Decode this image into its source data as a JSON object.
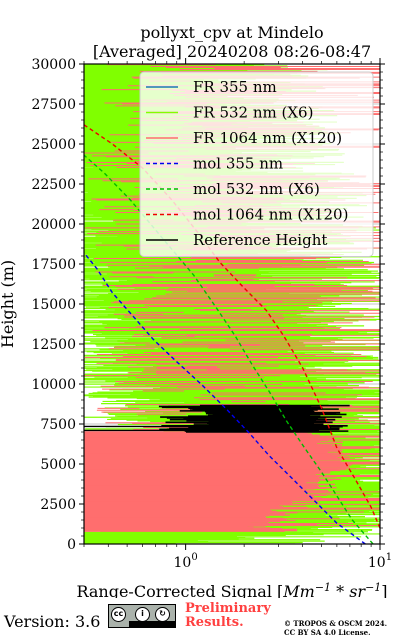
{
  "chart_data": {
    "type": "line",
    "title": "pollyxt_cpv at Mindelo",
    "subtitle": "[Averaged] 20240208 08:26-08:47",
    "xlabel_prefix": "Range-Corrected Signal [",
    "xlabel_math": "Mm",
    "xlabel_sup1": "−1",
    "xlabel_mid": " * sr",
    "xlabel_sup2": "−1",
    "xlabel_suffix": "]",
    "ylabel": "Height (m)",
    "xscale": "log",
    "xlim": [
      0.3,
      10
    ],
    "ylim": [
      0,
      30000
    ],
    "xticks": [
      {
        "value": 1,
        "label": "10",
        "sup": "0"
      },
      {
        "value": 10,
        "label": "10",
        "sup": "1"
      }
    ],
    "yticks": [
      0,
      2500,
      5000,
      7500,
      10000,
      12500,
      15000,
      17500,
      20000,
      22500,
      25000,
      27500,
      30000
    ],
    "grid": true,
    "legend_position": "top-right",
    "series": [
      {
        "name": "FR 355 nm",
        "color": "#1f77b4",
        "style": "solid",
        "points": []
      },
      {
        "name": "FR 532 nm (X6)",
        "color": "#80ff00",
        "style": "solid",
        "note_noisy": true,
        "points": [
          [
            0.6,
            0
          ],
          [
            3,
            1000
          ],
          [
            5,
            2500
          ],
          [
            6,
            4000
          ],
          [
            5,
            6000
          ],
          [
            4,
            8000
          ],
          [
            3,
            10000
          ],
          [
            2.5,
            12500
          ],
          [
            2,
            15000
          ],
          [
            1.8,
            17500
          ],
          [
            1.5,
            20000
          ],
          [
            1.2,
            22500
          ],
          [
            1,
            25000
          ],
          [
            0.9,
            27500
          ],
          [
            0.8,
            30000
          ]
        ]
      },
      {
        "name": "FR 1064 nm (X120)",
        "color": "#ff6e6e",
        "style": "solid",
        "note_noisy": true,
        "points": [
          [
            2,
            1000
          ],
          [
            4,
            3000
          ],
          [
            5,
            5000
          ],
          [
            4.5,
            7000
          ],
          [
            4,
            9000
          ],
          [
            3,
            11000
          ],
          [
            2.5,
            13000
          ],
          [
            2,
            15000
          ],
          [
            1.8,
            17500
          ],
          [
            1.6,
            20000
          ],
          [
            1.4,
            22500
          ],
          [
            1.2,
            25000
          ],
          [
            1,
            27500
          ],
          [
            0.9,
            30000
          ]
        ]
      },
      {
        "name": "mol 355 nm",
        "color": "#0000ee",
        "style": "dashed",
        "points": [
          [
            8.4,
            0
          ],
          [
            6,
            1300
          ],
          [
            4.6,
            2700
          ],
          [
            3.6,
            4000
          ],
          [
            2.7,
            5500
          ],
          [
            2.1,
            7000
          ],
          [
            1.6,
            8500
          ],
          [
            1.2,
            10000
          ],
          [
            0.88,
            11500
          ],
          [
            0.68,
            12800
          ],
          [
            0.54,
            14200
          ],
          [
            0.42,
            15700
          ],
          [
            0.35,
            17200
          ],
          [
            0.3,
            18200
          ]
        ]
      },
      {
        "name": "mol 532 nm (X6)",
        "color": "#00bb00",
        "style": "dashed",
        "points": [
          [
            9.2,
            0
          ],
          [
            7.2,
            1500
          ],
          [
            6,
            3000
          ],
          [
            5,
            4500
          ],
          [
            4.1,
            6000
          ],
          [
            3.3,
            7700
          ],
          [
            2.7,
            9500
          ],
          [
            2.2,
            11200
          ],
          [
            1.8,
            13000
          ],
          [
            1.45,
            14700
          ],
          [
            1.1,
            16800
          ],
          [
            0.75,
            19200
          ],
          [
            0.52,
            21500
          ],
          [
            0.38,
            23200
          ],
          [
            0.3,
            24300
          ]
        ]
      },
      {
        "name": "mol 1064 nm (X120)",
        "color": "#ee0000",
        "style": "dashed",
        "points": [
          [
            10,
            1000
          ],
          [
            9,
            2300
          ],
          [
            7.5,
            4000
          ],
          [
            6,
            6000
          ],
          [
            5,
            8500
          ],
          [
            4,
            11000
          ],
          [
            3.2,
            13000
          ],
          [
            2.6,
            14600
          ],
          [
            2,
            16000
          ],
          [
            1.5,
            17600
          ],
          [
            1.15,
            19500
          ],
          [
            0.85,
            21500
          ],
          [
            0.6,
            23500
          ],
          [
            0.42,
            25000
          ],
          [
            0.3,
            26200
          ]
        ]
      },
      {
        "name": "Reference Height",
        "color": "#000000",
        "style": "solid",
        "points": [
          [
            1.5,
            7100
          ],
          [
            9,
            7100
          ],
          [
            2,
            7400
          ],
          [
            8,
            7400
          ],
          [
            2.5,
            7700
          ],
          [
            7,
            7700
          ],
          [
            1.8,
            8000
          ],
          [
            6,
            8000
          ],
          [
            2.2,
            8300
          ],
          [
            5,
            8300
          ],
          [
            2,
            8600
          ],
          [
            6,
            8600
          ]
        ]
      }
    ]
  },
  "footer": {
    "version": "Version: 3.6",
    "preliminary": "Preliminary",
    "results": "Results.",
    "copyright_line1": "© TROPOS & OSCM 2024.",
    "copyright_line2": "CC BY SA 4.0 License.",
    "cc_icons": [
      "cc-icon",
      "by-icon",
      "sa-icon"
    ]
  }
}
